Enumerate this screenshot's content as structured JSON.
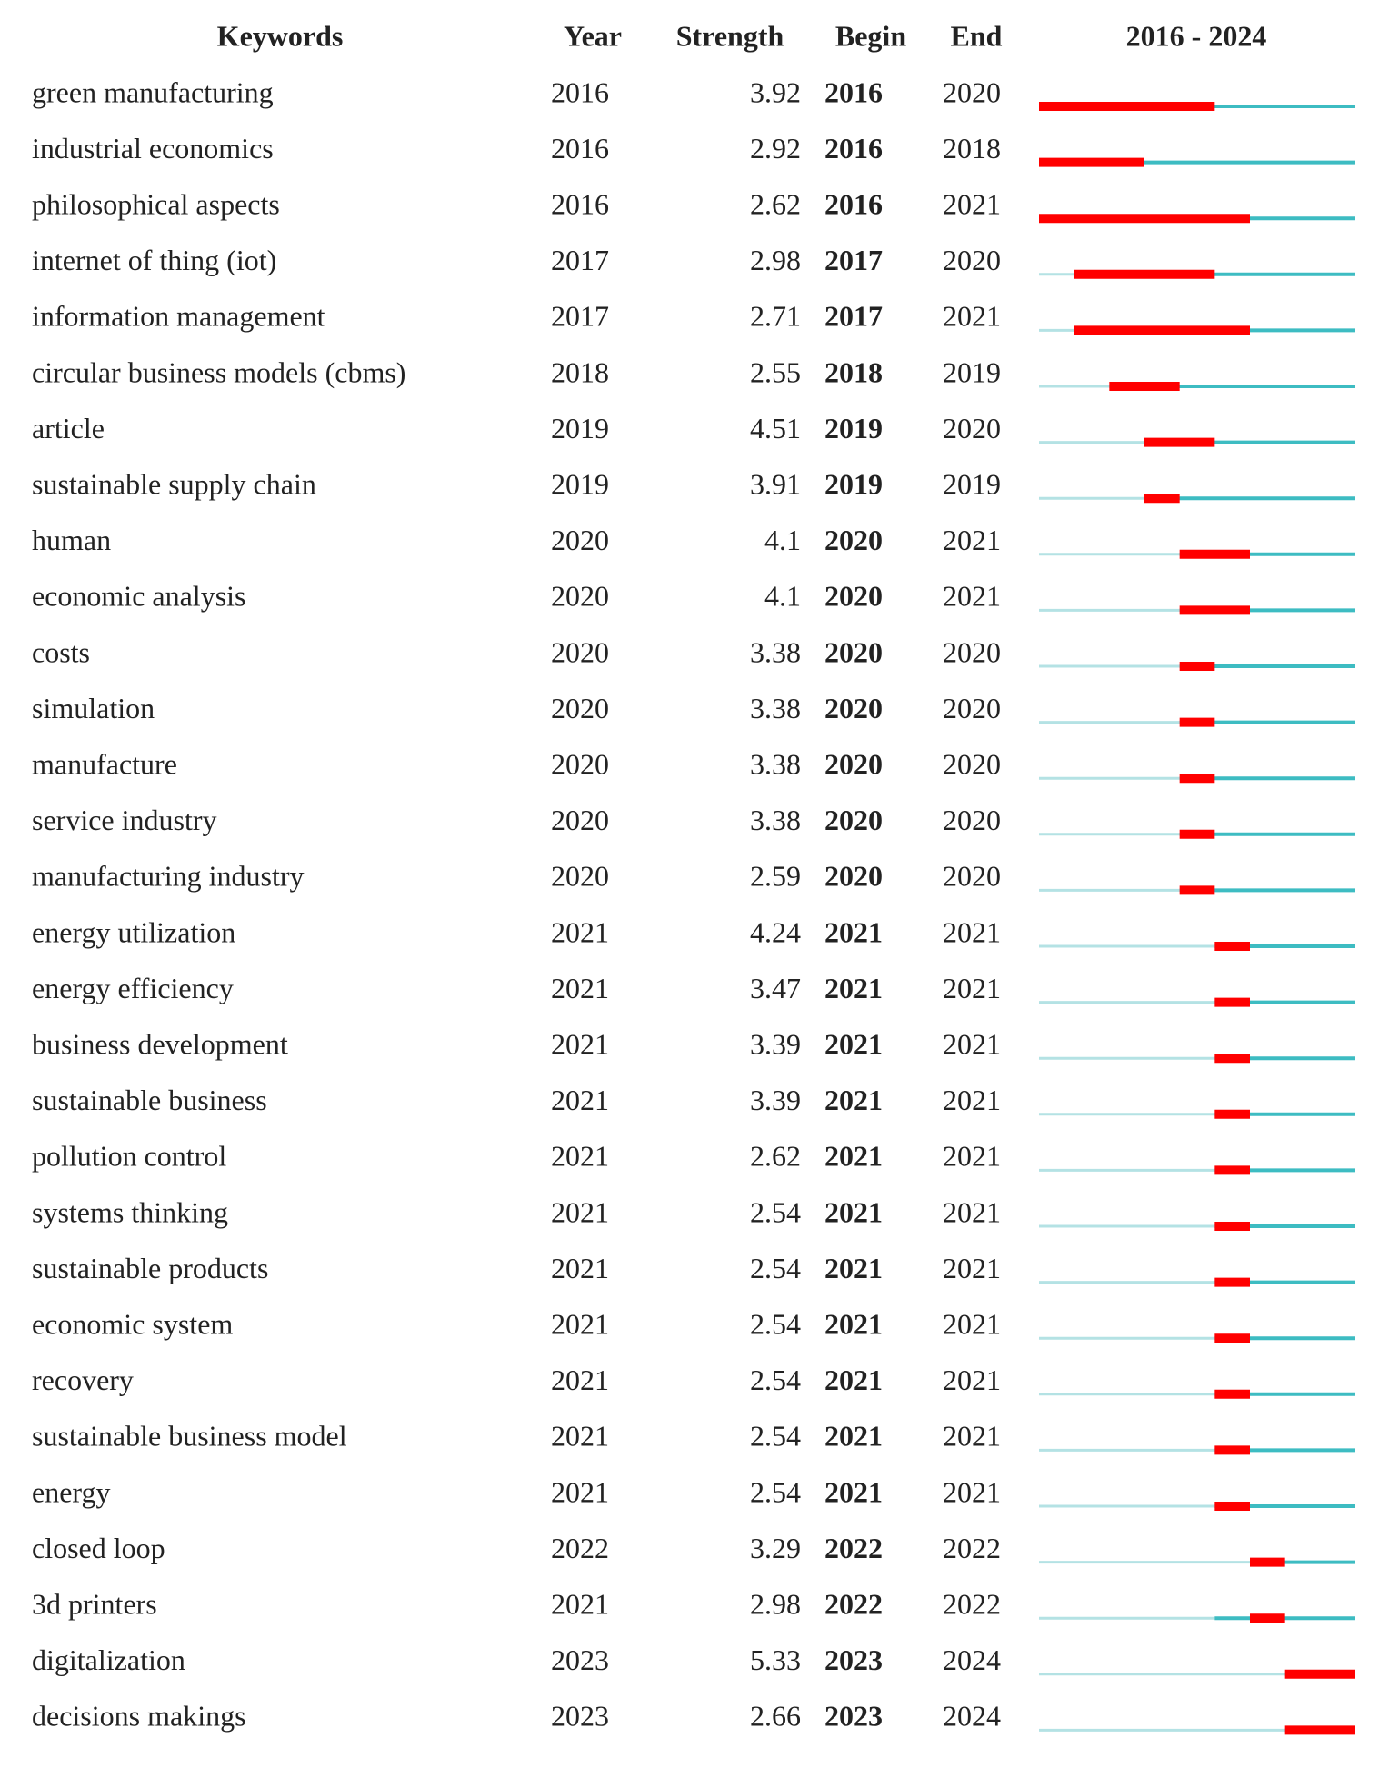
{
  "table": {
    "headers": [
      "Keywords",
      "Year",
      "Strength",
      "Begin",
      "End"
    ],
    "timeline_label": "2016 - 2024",
    "xlim": [
      2016,
      2024
    ],
    "rows": [
      [
        "green manufacturing",
        2016,
        3.92,
        2016,
        2020
      ],
      [
        "industrial economics",
        2016,
        2.92,
        2016,
        2018
      ],
      [
        "philosophical aspects",
        2016,
        2.62,
        2016,
        2021
      ],
      [
        "internet of thing (iot)",
        2017,
        2.98,
        2017,
        2020
      ],
      [
        "information management",
        2017,
        2.71,
        2017,
        2021
      ],
      [
        "circular business models (cbms)",
        2018,
        2.55,
        2018,
        2019
      ],
      [
        "article",
        2019,
        4.51,
        2019,
        2020
      ],
      [
        "sustainable supply chain",
        2019,
        3.91,
        2019,
        2019
      ],
      [
        "human",
        2020,
        4.1,
        2020,
        2021
      ],
      [
        "economic analysis",
        2020,
        4.1,
        2020,
        2021
      ],
      [
        "costs",
        2020,
        3.38,
        2020,
        2020
      ],
      [
        "simulation",
        2020,
        3.38,
        2020,
        2020
      ],
      [
        "manufacture",
        2020,
        3.38,
        2020,
        2020
      ],
      [
        "service industry",
        2020,
        3.38,
        2020,
        2020
      ],
      [
        "manufacturing industry",
        2020,
        2.59,
        2020,
        2020
      ],
      [
        "energy utilization",
        2021,
        4.24,
        2021,
        2021
      ],
      [
        "energy efficiency",
        2021,
        3.47,
        2021,
        2021
      ],
      [
        "business development",
        2021,
        3.39,
        2021,
        2021
      ],
      [
        "sustainable business",
        2021,
        3.39,
        2021,
        2021
      ],
      [
        "pollution control",
        2021,
        2.62,
        2021,
        2021
      ],
      [
        "systems thinking",
        2021,
        2.54,
        2021,
        2021
      ],
      [
        "sustainable products",
        2021,
        2.54,
        2021,
        2021
      ],
      [
        "economic system",
        2021,
        2.54,
        2021,
        2021
      ],
      [
        "recovery",
        2021,
        2.54,
        2021,
        2021
      ],
      [
        "sustainable business model",
        2021,
        2.54,
        2021,
        2021
      ],
      [
        "energy",
        2021,
        2.54,
        2021,
        2021
      ],
      [
        "closed loop",
        2022,
        3.29,
        2022,
        2022
      ],
      [
        "3d printers",
        2021,
        2.98,
        2022,
        2022
      ],
      [
        "digitalization",
        2023,
        5.33,
        2023,
        2024
      ],
      [
        "decisions makings",
        2023,
        2.66,
        2023,
        2024
      ]
    ]
  }
}
